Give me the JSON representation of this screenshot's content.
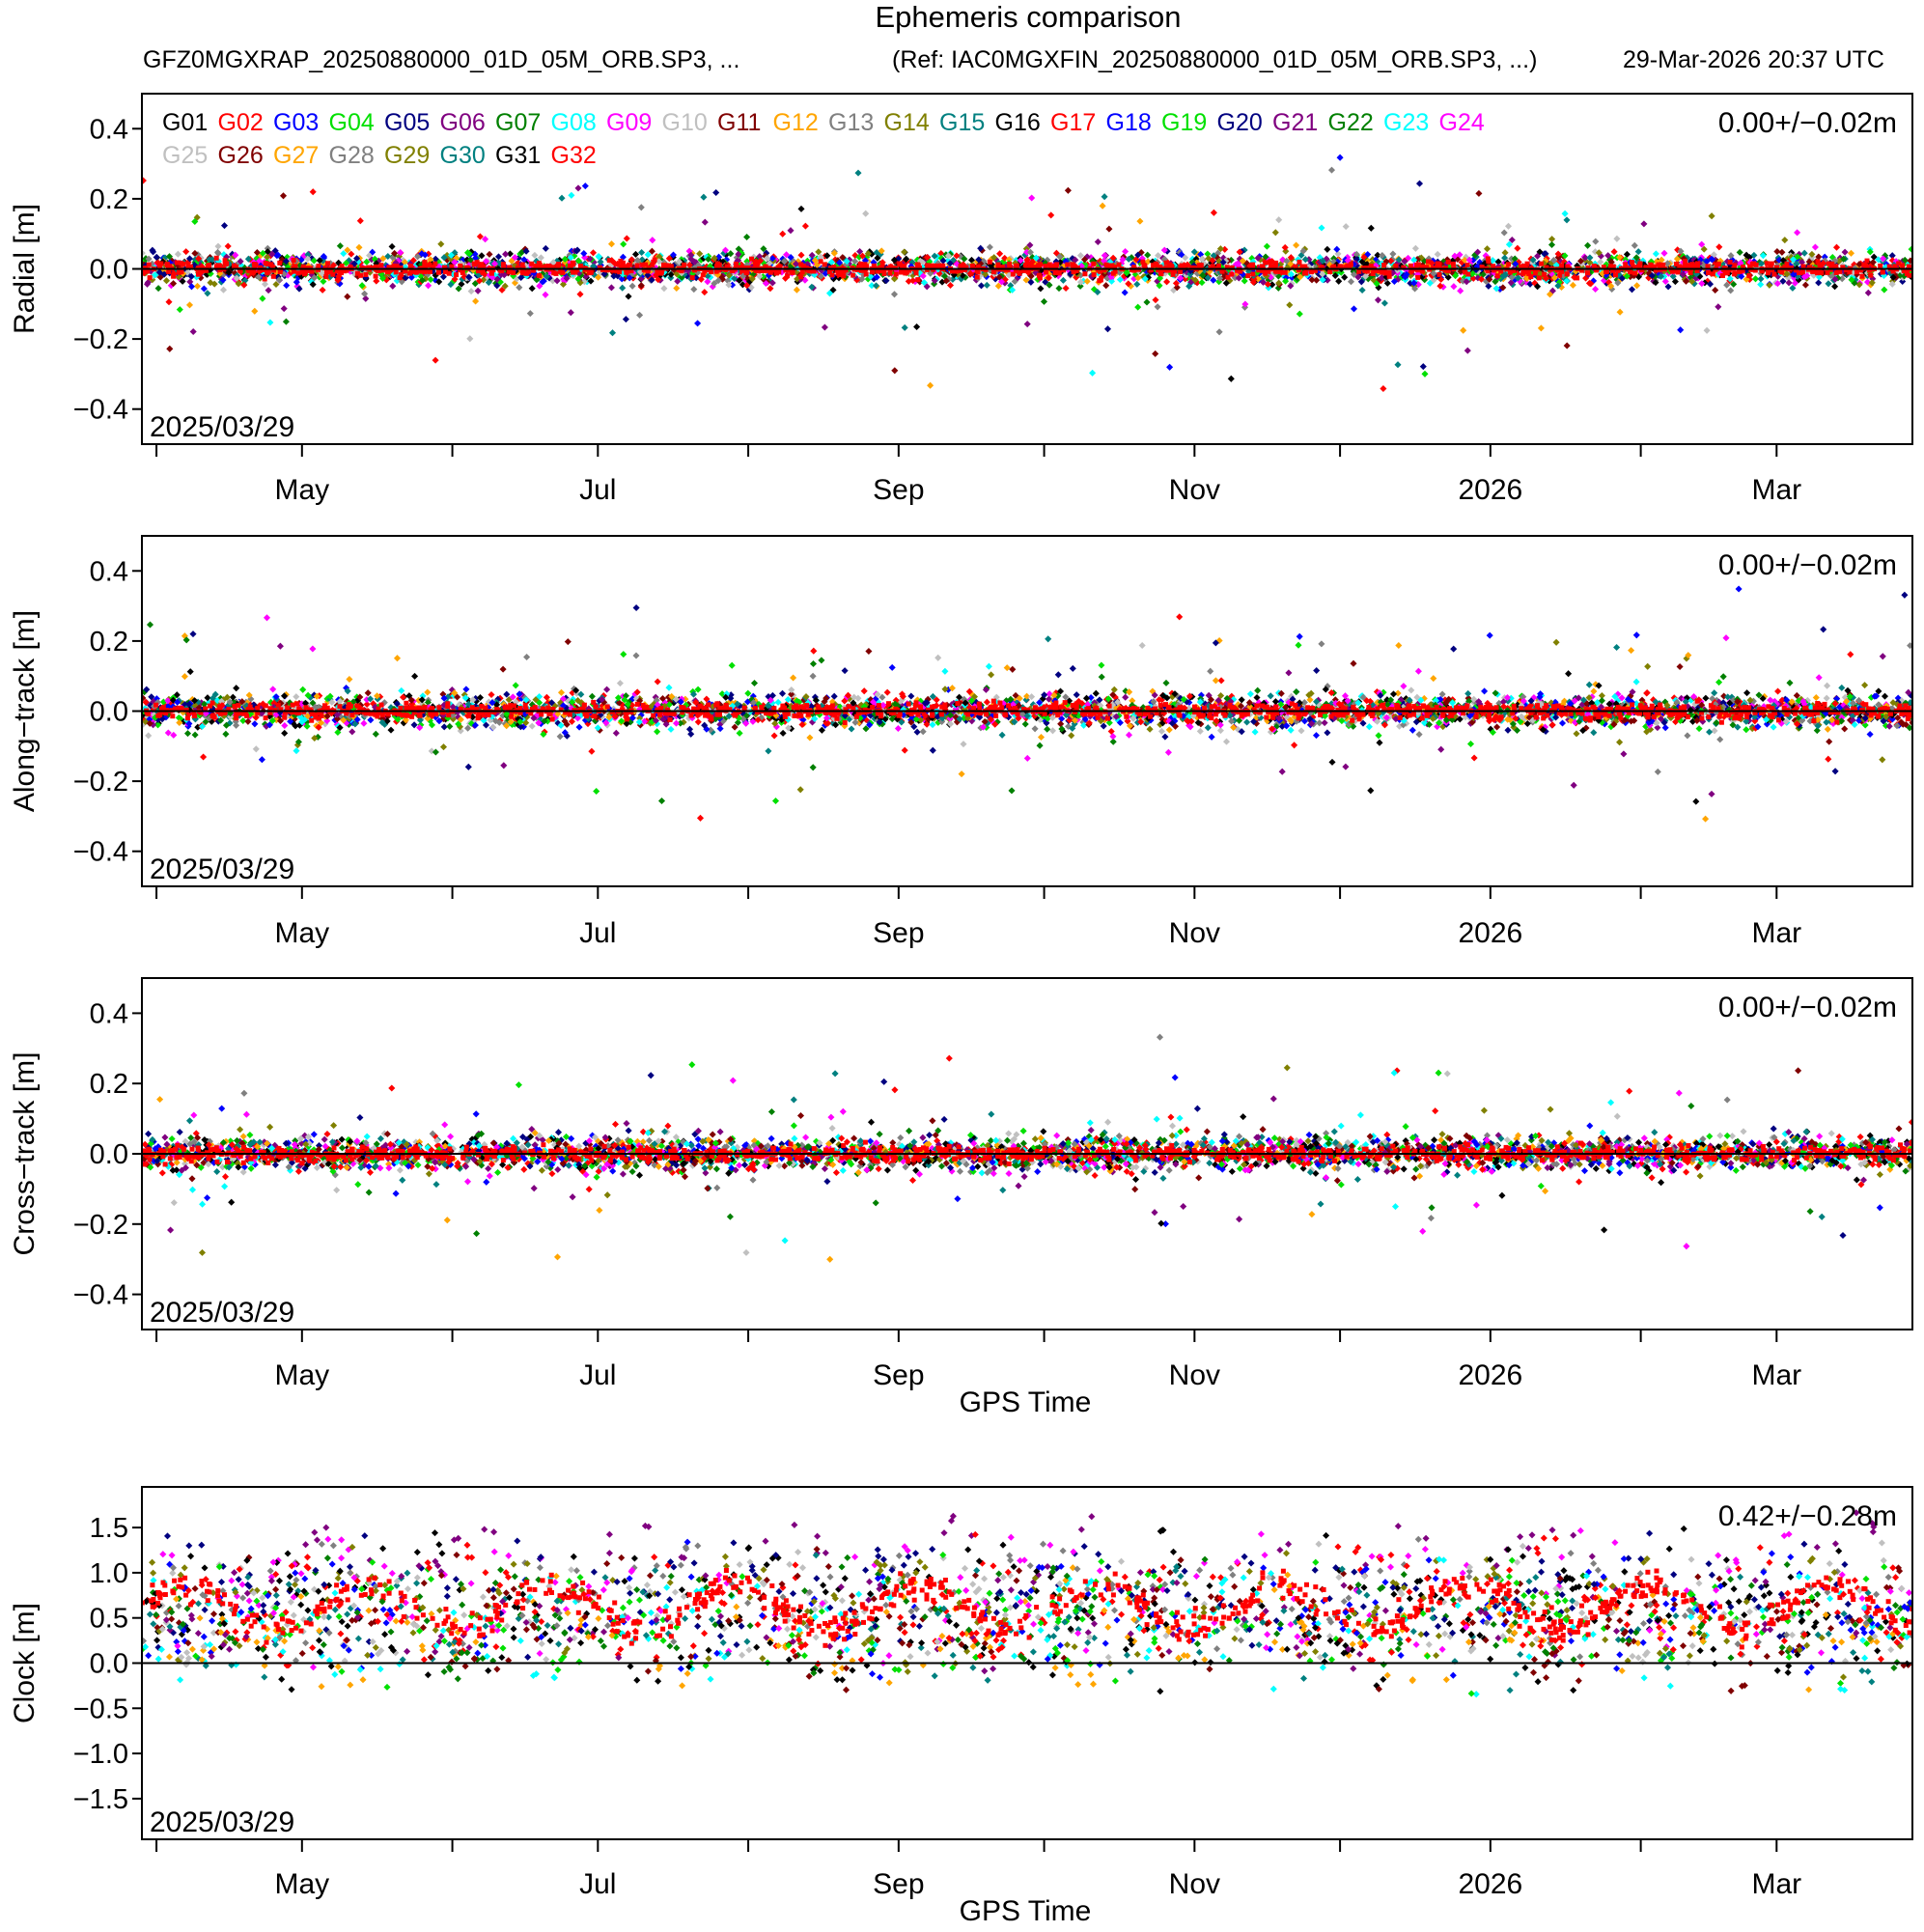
{
  "header": {
    "title": "Ephemeris comparison",
    "file": "GFZ0MGXRAP_20250880000_01D_05M_ORB.SP3, ...",
    "reference": "(Ref: IAC0MGXFIN_20250880000_01D_05M_ORB.SP3, ...)",
    "generated": "29-Mar-2026 20:37 UTC"
  },
  "chart_data": [
    {
      "type": "scatter",
      "ylabel": "Radial [m]",
      "xlabel": "",
      "ylim": [
        -0.5,
        0.5
      ],
      "yticks": [
        -0.4,
        -0.2,
        0.0,
        0.2,
        0.4
      ],
      "ytick_labels": [
        "−0.4",
        "−0.2",
        "0.0",
        "0.2",
        "0.4"
      ],
      "xticks": [
        "May",
        "Jul",
        "Sep",
        "Nov",
        "2026",
        "Mar"
      ],
      "start_label": "2025/03/29",
      "stat": "0.00+/−0.02m",
      "mean": 0.0,
      "spread": 0.02
    },
    {
      "type": "scatter",
      "ylabel": "Along−track [m]",
      "xlabel": "",
      "ylim": [
        -0.5,
        0.5
      ],
      "yticks": [
        -0.4,
        -0.2,
        0.0,
        0.2,
        0.4
      ],
      "ytick_labels": [
        "−0.4",
        "−0.2",
        "0.0",
        "0.2",
        "0.4"
      ],
      "xticks": [
        "May",
        "Jul",
        "Sep",
        "Nov",
        "2026",
        "Mar"
      ],
      "start_label": "2025/03/29",
      "stat": "0.00+/−0.02m",
      "mean": 0.0,
      "spread": 0.02
    },
    {
      "type": "scatter",
      "ylabel": "Cross−track [m]",
      "xlabel": "GPS Time",
      "ylim": [
        -0.5,
        0.5
      ],
      "yticks": [
        -0.4,
        -0.2,
        0.0,
        0.2,
        0.4
      ],
      "ytick_labels": [
        "−0.4",
        "−0.2",
        "0.0",
        "0.2",
        "0.4"
      ],
      "xticks": [
        "May",
        "Jul",
        "Sep",
        "Nov",
        "2026",
        "Mar"
      ],
      "start_label": "2025/03/29",
      "stat": "0.00+/−0.02m",
      "mean": 0.0,
      "spread": 0.02
    },
    {
      "type": "scatter",
      "ylabel": "Clock [m]",
      "xlabel": "GPS Time",
      "ylim": [
        -1.95,
        1.95
      ],
      "yticks": [
        -1.5,
        -1.0,
        -0.5,
        0.0,
        0.5,
        1.0,
        1.5
      ],
      "ytick_labels": [
        "−1.5",
        "−1.0",
        "−0.5",
        "0.0",
        "0.5",
        "1.0",
        "1.5"
      ],
      "xticks": [
        "May",
        "Jul",
        "Sep",
        "Nov",
        "2026",
        "Mar"
      ],
      "start_label": "2025/03/29",
      "stat": "0.42+/−0.28m",
      "mean": 0.42,
      "spread": 0.28
    }
  ],
  "x_axis": {
    "range_days": [
      0,
      365
    ],
    "minor_tick_days": [
      3,
      33,
      64,
      94,
      125,
      156,
      186,
      217,
      247,
      278,
      309,
      337
    ],
    "label_days": [
      33,
      94,
      156,
      217,
      278,
      337
    ]
  },
  "legend": {
    "entries": [
      {
        "name": "G01",
        "color": "#000000"
      },
      {
        "name": "G02",
        "color": "#ff0000"
      },
      {
        "name": "G03",
        "color": "#0000ff"
      },
      {
        "name": "G04",
        "color": "#00e000"
      },
      {
        "name": "G05",
        "color": "#000080"
      },
      {
        "name": "G06",
        "color": "#800080"
      },
      {
        "name": "G07",
        "color": "#008000"
      },
      {
        "name": "G08",
        "color": "#00ffff"
      },
      {
        "name": "G09",
        "color": "#ff00ff"
      },
      {
        "name": "G10",
        "color": "#c0c0c0"
      },
      {
        "name": "G11",
        "color": "#800000"
      },
      {
        "name": "G12",
        "color": "#ffa500"
      },
      {
        "name": "G13",
        "color": "#808080"
      },
      {
        "name": "G14",
        "color": "#808000"
      },
      {
        "name": "G15",
        "color": "#008080"
      },
      {
        "name": "G16",
        "color": "#000000"
      },
      {
        "name": "G17",
        "color": "#ff0000"
      },
      {
        "name": "G18",
        "color": "#0000ff"
      },
      {
        "name": "G19",
        "color": "#00e000"
      },
      {
        "name": "G20",
        "color": "#000080"
      },
      {
        "name": "G21",
        "color": "#800080"
      },
      {
        "name": "G22",
        "color": "#008000"
      },
      {
        "name": "G23",
        "color": "#00ffff"
      },
      {
        "name": "G24",
        "color": "#ff00ff"
      },
      {
        "name": "G25",
        "color": "#c0c0c0"
      },
      {
        "name": "G26",
        "color": "#800000"
      },
      {
        "name": "G27",
        "color": "#ffa500"
      },
      {
        "name": "G28",
        "color": "#808080"
      },
      {
        "name": "G29",
        "color": "#808000"
      },
      {
        "name": "G30",
        "color": "#008080"
      },
      {
        "name": "G31",
        "color": "#000000"
      },
      {
        "name": "G32",
        "color": "#ff0000"
      }
    ]
  }
}
